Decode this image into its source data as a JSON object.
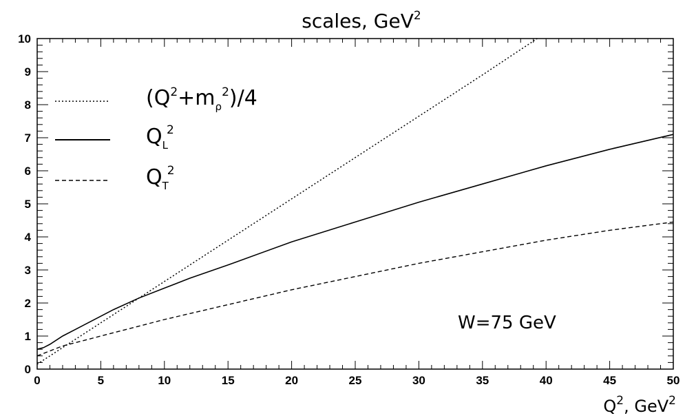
{
  "chart_data": {
    "type": "line",
    "title": {
      "base": "scales, GeV",
      "sup": "2"
    },
    "xlabel": {
      "q": "Q",
      "q_sup": "2",
      "rest": ", GeV",
      "rest_sup": "2"
    },
    "ylabel": "",
    "xlim": [
      0,
      50
    ],
    "ylim": [
      0,
      10
    ],
    "x_major_ticks": [
      0,
      5,
      10,
      15,
      20,
      25,
      30,
      35,
      40,
      45,
      50
    ],
    "y_major_ticks": [
      0,
      1,
      2,
      3,
      4,
      5,
      6,
      7,
      8,
      9,
      10
    ],
    "x_tick_labels": [
      "0",
      "5",
      "10",
      "15",
      "20",
      "25",
      "30",
      "35",
      "40",
      "45",
      "50"
    ],
    "y_tick_labels": [
      "0",
      "1",
      "2",
      "3",
      "4",
      "5",
      "6",
      "7",
      "8",
      "9",
      "10"
    ],
    "grid": false,
    "legend_placement": "top-left",
    "series": [
      {
        "key": "sum",
        "style": "dotted",
        "label": {
          "open": "(Q",
          "sup1": "2",
          "plus": "+m",
          "sub": "ρ",
          "sup2": "2",
          "close": ")/4"
        },
        "x": [
          0,
          5,
          10,
          15,
          20,
          25,
          30,
          35,
          39.3
        ],
        "y": [
          0.15,
          1.4,
          2.65,
          3.9,
          5.15,
          6.4,
          7.65,
          8.9,
          10.0
        ]
      },
      {
        "key": "ql",
        "style": "solid",
        "label": {
          "base": "Q",
          "sub": "L",
          "sup": "2"
        },
        "x": [
          0,
          0.5,
          1,
          2,
          3,
          4,
          5,
          6,
          8,
          10,
          12,
          15,
          20,
          25,
          30,
          35,
          40,
          45,
          50
        ],
        "y": [
          0.6,
          0.65,
          0.75,
          1.0,
          1.2,
          1.4,
          1.6,
          1.8,
          2.15,
          2.45,
          2.75,
          3.15,
          3.85,
          4.45,
          5.05,
          5.6,
          6.15,
          6.65,
          7.1
        ]
      },
      {
        "key": "qt",
        "style": "dashed",
        "label": {
          "base": "Q",
          "sub": "T",
          "sup": "2"
        },
        "x": [
          0,
          1,
          2,
          3,
          5,
          7,
          10,
          15,
          20,
          25,
          30,
          35,
          40,
          45,
          50
        ],
        "y": [
          0.4,
          0.55,
          0.7,
          0.8,
          1.0,
          1.2,
          1.5,
          1.95,
          2.4,
          2.8,
          3.2,
          3.55,
          3.9,
          4.2,
          4.45
        ]
      }
    ],
    "annotation": "W=75 GeV"
  }
}
